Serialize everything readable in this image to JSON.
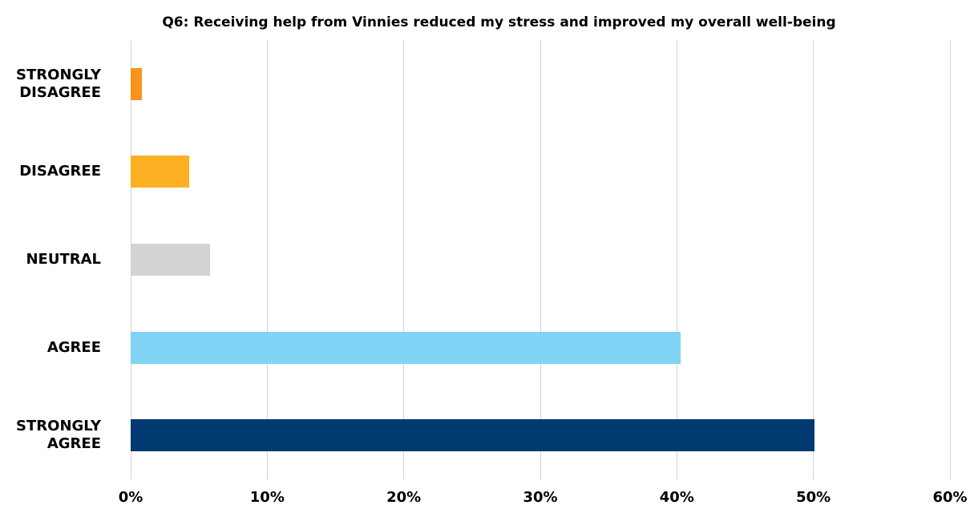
{
  "chart_data": {
    "type": "bar",
    "orientation": "horizontal",
    "title": "Q6: Receiving help from Vinnies reduced my stress and improved my overall well-being",
    "categories": [
      "STRONGLY DISAGREE",
      "DISAGREE",
      "NEUTRAL",
      "AGREE",
      "STRONGLY AGREE"
    ],
    "values": [
      0.8,
      4.3,
      5.8,
      40.3,
      50.1
    ],
    "colors": [
      "#f7941d",
      "#fdb022",
      "#d1d3d4",
      "#80d3f5",
      "#003a70"
    ],
    "xlim": [
      0,
      60
    ],
    "xticks": [
      {
        "value": 0,
        "label": "0%"
      },
      {
        "value": 10,
        "label": "10%"
      },
      {
        "value": 20,
        "label": "20%"
      },
      {
        "value": 30,
        "label": "30%"
      },
      {
        "value": 40,
        "label": "40%"
      },
      {
        "value": 50,
        "label": "50%"
      },
      {
        "value": 60,
        "label": "60%"
      }
    ],
    "grid": true
  }
}
